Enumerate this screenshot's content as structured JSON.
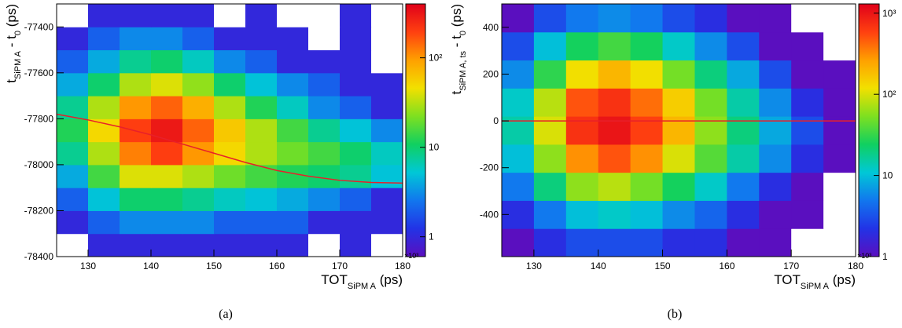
{
  "chart_data": [
    {
      "type": "heatmap",
      "caption": "(a)",
      "xlabel_parts": [
        {
          "text": "TOT"
        },
        {
          "text": "SiPM A",
          "sub": true
        },
        {
          "text": " (ps)"
        }
      ],
      "ylabel_parts": [
        {
          "text": "t"
        },
        {
          "text": "SiPM A",
          "sub": true
        },
        {
          "text": " - t"
        },
        {
          "text": "0",
          "sub": true
        },
        {
          "text": " (ps)"
        }
      ],
      "x_multiplier": "×10³",
      "xlim": [
        125,
        180
      ],
      "xticks": [
        130,
        140,
        150,
        160,
        170,
        180
      ],
      "ylim": [
        -78400,
        -77300
      ],
      "yticks": [
        -78400,
        -78200,
        -78000,
        -77800,
        -77600,
        -77400
      ],
      "zlim": [
        0.6,
        400
      ],
      "zlog": true,
      "zticks": [
        1,
        10,
        {
          "value": 100,
          "label": "10²"
        }
      ],
      "colormap": [
        "#5a0fbf",
        "#2233e6",
        "#1177ee",
        "#00c8d6",
        "#10d060",
        "#7ee020",
        "#f2e000",
        "#ffa000",
        "#ff4010",
        "#e0001a"
      ],
      "xbins": [
        125,
        130,
        135,
        140,
        145,
        150,
        155,
        160,
        165,
        170,
        175,
        180
      ],
      "ybins": [
        -78400,
        -78300,
        -78200,
        -78100,
        -78000,
        -77900,
        -77800,
        -77700,
        -77600,
        -77500,
        -77400,
        -77300
      ],
      "z": [
        [
          0,
          1,
          1,
          1,
          1,
          1,
          1,
          1,
          0,
          1,
          0
        ],
        [
          1,
          2,
          3,
          3,
          3,
          2,
          2,
          2,
          1,
          1,
          1
        ],
        [
          2,
          5,
          10,
          10,
          8,
          6,
          5,
          4,
          3,
          2,
          1
        ],
        [
          4,
          15,
          40,
          40,
          30,
          20,
          15,
          12,
          10,
          8,
          5
        ],
        [
          8,
          30,
          120,
          200,
          100,
          50,
          30,
          20,
          15,
          10,
          6
        ],
        [
          12,
          50,
          200,
          300,
          150,
          60,
          30,
          15,
          8,
          5,
          3
        ],
        [
          8,
          30,
          100,
          150,
          80,
          30,
          12,
          6,
          3,
          2,
          1
        ],
        [
          4,
          10,
          30,
          40,
          25,
          10,
          5,
          3,
          2,
          1,
          1
        ],
        [
          2,
          4,
          8,
          10,
          6,
          3,
          2,
          1,
          1,
          1,
          0
        ],
        [
          1,
          2,
          3,
          3,
          2,
          1,
          1,
          1,
          0,
          1,
          0
        ],
        [
          0,
          1,
          1,
          1,
          1,
          0,
          1,
          0,
          0,
          1,
          0
        ]
      ],
      "series": [
        {
          "color": "#e8202a",
          "x": [
            125,
            130,
            135,
            140,
            145,
            150,
            155,
            160,
            165,
            170,
            175,
            180
          ],
          "values": [
            -77780,
            -77805,
            -77835,
            -77870,
            -77910,
            -77950,
            -77990,
            -78025,
            -78050,
            -78068,
            -78077,
            -78080
          ]
        }
      ]
    },
    {
      "type": "heatmap",
      "caption": "(b)",
      "xlabel_parts": [
        {
          "text": "TOT"
        },
        {
          "text": "SiPM A",
          "sub": true
        },
        {
          "text": " (ps)"
        }
      ],
      "ylabel_parts": [
        {
          "text": "t"
        },
        {
          "text": "SiPM A, ts",
          "sub": true
        },
        {
          "text": " - t"
        },
        {
          "text": "0",
          "sub": true
        },
        {
          "text": " (ps)"
        }
      ],
      "x_multiplier": "×10³",
      "xlim": [
        125,
        180
      ],
      "xticks": [
        130,
        140,
        150,
        160,
        170,
        180
      ],
      "ylim": [
        -580,
        500
      ],
      "yticks": [
        -400,
        -200,
        0,
        200,
        400
      ],
      "zlim": [
        1,
        1300
      ],
      "zlog": true,
      "zticks": [
        1,
        10,
        {
          "value": 100,
          "label": "10²"
        },
        {
          "value": 1000,
          "label": "10³"
        }
      ],
      "colormap": [
        "#5a0fbf",
        "#2233e6",
        "#1177ee",
        "#00c8d6",
        "#10d060",
        "#7ee020",
        "#f2e000",
        "#ffa000",
        "#ff4010",
        "#e0001a"
      ],
      "xbins": [
        125,
        130,
        135,
        140,
        145,
        150,
        155,
        160,
        165,
        170,
        175,
        180
      ],
      "ybins": [
        -580,
        -460,
        -340,
        -220,
        -100,
        20,
        140,
        260,
        380,
        500
      ],
      "z": [
        [
          1,
          2,
          3,
          3,
          3,
          2,
          2,
          1,
          1,
          0,
          0
        ],
        [
          2,
          5,
          10,
          12,
          10,
          6,
          4,
          2,
          1,
          1,
          0
        ],
        [
          5,
          20,
          60,
          80,
          50,
          25,
          12,
          5,
          2,
          1,
          0
        ],
        [
          10,
          60,
          300,
          500,
          300,
          100,
          40,
          15,
          6,
          2,
          1
        ],
        [
          15,
          100,
          700,
          1000,
          600,
          200,
          60,
          20,
          8,
          3,
          1
        ],
        [
          12,
          80,
          500,
          700,
          400,
          150,
          50,
          15,
          6,
          2,
          1
        ],
        [
          6,
          30,
          120,
          200,
          120,
          50,
          20,
          8,
          3,
          1,
          1
        ],
        [
          3,
          10,
          25,
          35,
          25,
          12,
          6,
          3,
          1,
          1,
          0
        ],
        [
          1,
          3,
          5,
          6,
          5,
          3,
          2,
          1,
          1,
          0,
          0
        ]
      ],
      "series": [
        {
          "color": "#e8202a",
          "x": [
            125,
            135,
            145,
            155,
            165,
            175,
            180
          ],
          "values": [
            0,
            0,
            0,
            0,
            0,
            0,
            0
          ]
        }
      ]
    }
  ]
}
